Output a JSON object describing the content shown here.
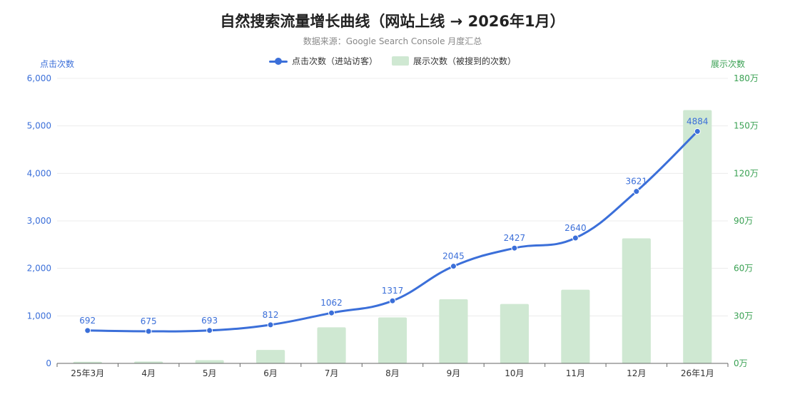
{
  "chart_data": {
    "type": "bar+line",
    "title": "自然搜索流量增长曲线（网站上线 → 2026年1月）",
    "subtitle": "数据来源：Google Search Console 月度汇总",
    "categories": [
      "25年3月",
      "4月",
      "5月",
      "6月",
      "7月",
      "8月",
      "9月",
      "10月",
      "11月",
      "12月",
      "26年1月"
    ],
    "series": [
      {
        "name": "点击次数（进站访客）",
        "type": "line",
        "axis": "left",
        "color": "#3b6fd9",
        "values": [
          692,
          675,
          693,
          812,
          1062,
          1317,
          2045,
          2427,
          2640,
          3621,
          4884
        ],
        "labels": [
          "692",
          "675",
          "693",
          "812",
          "1062",
          "1317",
          "2045",
          "2427",
          "2640",
          "3621",
          "4884"
        ]
      },
      {
        "name": "展示次数（被搜到的次数）",
        "type": "bar",
        "axis": "right",
        "color": "#cfe8d2",
        "values": [
          10000,
          12000,
          20000,
          85000,
          228000,
          290000,
          405000,
          375000,
          465000,
          790000,
          1600000
        ]
      }
    ],
    "left_axis": {
      "label": "点击次数",
      "range": [
        0,
        6000
      ],
      "tick_labels": [
        "0",
        "1,000",
        "2,000",
        "3,000",
        "4,000",
        "5,000",
        "6,000"
      ],
      "color": "#3b6fd9"
    },
    "right_axis": {
      "label": "展示次数",
      "range": [
        0,
        1800000
      ],
      "tick_labels": [
        "0万",
        "30万",
        "60万",
        "90万",
        "120万",
        "150万",
        "180万"
      ],
      "color": "#3aa153"
    },
    "legend": "top-center",
    "grid": true
  }
}
